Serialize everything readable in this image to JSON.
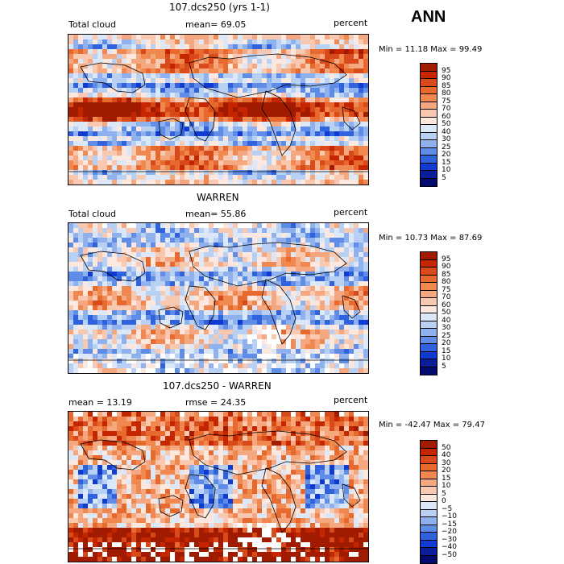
{
  "season": "ANN",
  "panels": [
    {
      "title": "107.dcs250 (yrs 1-1)",
      "left_label": "Total cloud",
      "mid_label": "mean=  69.05",
      "right_label": "percent",
      "minmax": "Min =  11.18 Max =  99.49",
      "field_mode": "model",
      "colorbar": {
        "labels": [
          "95",
          "90",
          "85",
          "80",
          "75",
          "70",
          "60",
          "50",
          "40",
          "30",
          "25",
          "20",
          "15",
          "10",
          "5"
        ],
        "colors": [
          "#a11b00",
          "#c52600",
          "#d94a1a",
          "#e8692e",
          "#f08850",
          "#f5a880",
          "#f9c8b0",
          "#fde8e0",
          "#dce8f8",
          "#b8d0f4",
          "#8fb2ef",
          "#5f8ce6",
          "#2f62dc",
          "#103bd0",
          "#0b1d99",
          "#050a70"
        ]
      }
    },
    {
      "title": "WARREN",
      "left_label": "Total cloud",
      "mid_label": "mean=  55.86",
      "right_label": "percent",
      "minmax": "Min =  10.73 Max =  87.69",
      "field_mode": "obs",
      "colorbar": {
        "labels": [
          "95",
          "90",
          "85",
          "80",
          "75",
          "70",
          "60",
          "50",
          "40",
          "30",
          "25",
          "20",
          "15",
          "10",
          "5"
        ],
        "colors": [
          "#a11b00",
          "#c52600",
          "#d94a1a",
          "#e8692e",
          "#f08850",
          "#f5a880",
          "#f9c8b0",
          "#fde8e0",
          "#dce8f8",
          "#b8d0f4",
          "#8fb2ef",
          "#5f8ce6",
          "#2f62dc",
          "#103bd0",
          "#0b1d99",
          "#050a70"
        ]
      }
    },
    {
      "title": "107.dcs250 - WARREN",
      "left_label": "mean =  13.19",
      "mid_label": "rmse =  24.35",
      "right_label": "percent",
      "minmax": "Min = -42.47 Max =  79.47",
      "field_mode": "diff",
      "colorbar": {
        "labels": [
          "50",
          "40",
          "30",
          "20",
          "15",
          "10",
          "5",
          "0",
          "−5",
          "−10",
          "−15",
          "−20",
          "−30",
          "−40",
          "−50"
        ],
        "colors": [
          "#a11b00",
          "#c52600",
          "#d94a1a",
          "#e8692e",
          "#f08850",
          "#f5a880",
          "#f9c8b0",
          "#fde8e0",
          "#dce8f8",
          "#b8d0f4",
          "#8fb2ef",
          "#5f8ce6",
          "#2f62dc",
          "#103bd0",
          "#0b1d99",
          "#050a70"
        ]
      }
    }
  ]
}
